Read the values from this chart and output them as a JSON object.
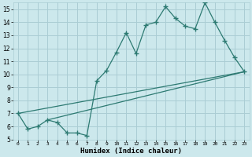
{
  "xlabel": "Humidex (Indice chaleur)",
  "bg_color": "#cce8ec",
  "grid_color": "#aacdd4",
  "line_color": "#2d7a72",
  "xlim_min": -0.5,
  "xlim_max": 23.5,
  "ylim_min": 5,
  "ylim_max": 15.5,
  "xticks": [
    0,
    1,
    2,
    3,
    4,
    5,
    6,
    7,
    8,
    9,
    10,
    11,
    12,
    13,
    14,
    15,
    16,
    17,
    18,
    19,
    20,
    21,
    22,
    23
  ],
  "yticks": [
    5,
    6,
    7,
    8,
    9,
    10,
    11,
    12,
    13,
    14,
    15
  ],
  "series1_x": [
    0,
    1,
    2,
    3,
    4,
    5,
    6,
    7,
    8,
    9,
    10,
    11,
    12,
    13,
    14,
    15,
    16,
    17,
    18,
    19,
    20,
    21,
    22,
    23
  ],
  "series1_y": [
    7.0,
    5.8,
    6.0,
    6.5,
    6.3,
    5.5,
    5.5,
    5.3,
    9.5,
    10.3,
    11.7,
    13.2,
    11.6,
    13.8,
    14.0,
    15.2,
    14.3,
    13.7,
    13.5,
    15.5,
    14.0,
    12.6,
    11.3,
    10.2
  ],
  "series2_x": [
    0,
    23
  ],
  "series2_y": [
    7.0,
    10.2
  ],
  "series3_x": [
    3,
    23
  ],
  "series3_y": [
    6.5,
    10.2
  ]
}
